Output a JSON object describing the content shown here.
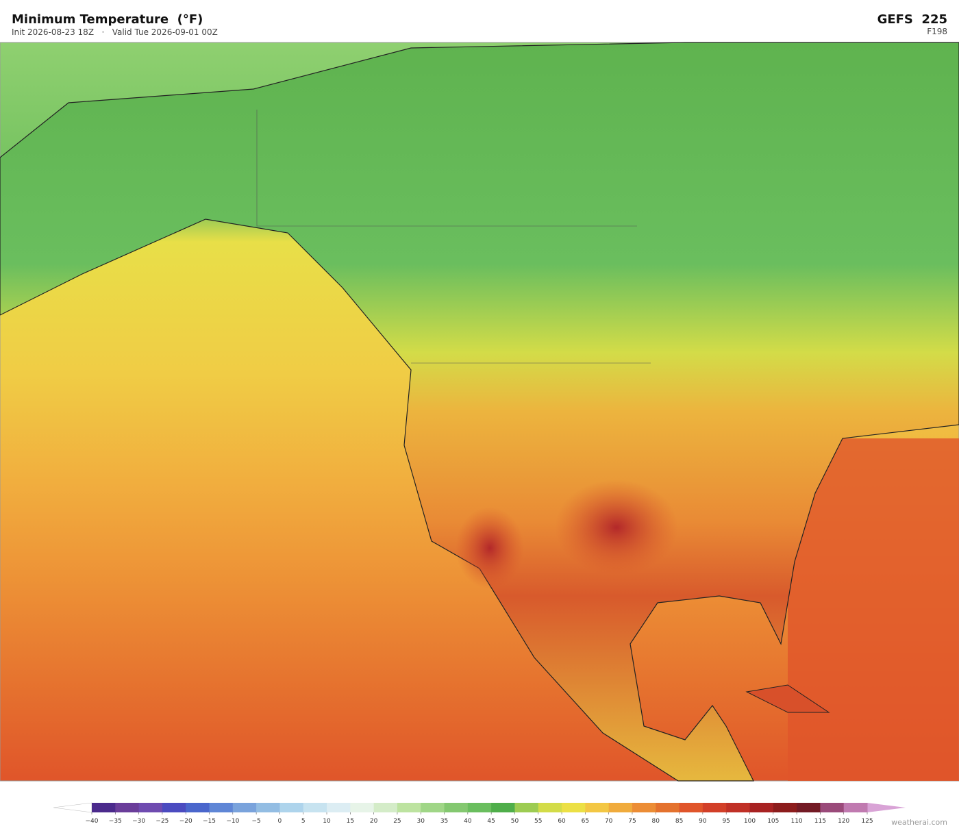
{
  "header": {
    "title": "Minimum Temperature  (°F)",
    "subtitle": "Init 2026-08-23 18Z   ·   Valid Tue 2026-09-01 00Z",
    "model": "GEFS  225",
    "forecast_hour": "F198"
  },
  "colorbar": {
    "ticks": [
      {
        "value": -40,
        "label": "−40"
      },
      {
        "value": -35,
        "label": "−35"
      },
      {
        "value": -30,
        "label": "−30"
      },
      {
        "value": -25,
        "label": "−25"
      },
      {
        "value": -20,
        "label": "−20"
      },
      {
        "value": -15,
        "label": "−15"
      },
      {
        "value": -10,
        "label": "−10"
      },
      {
        "value": -5,
        "label": "−5"
      },
      0,
      5,
      10,
      15,
      20,
      25,
      30,
      35,
      40,
      45,
      50,
      55,
      60,
      65,
      70,
      75,
      80,
      85,
      90,
      95,
      100,
      105,
      110,
      115,
      120,
      125
    ],
    "colors": [
      "#4b2a8c",
      "#6a3d9a",
      "#6f4bb0",
      "#4b4bc0",
      "#4a66cc",
      "#5f86d6",
      "#7aa3dc",
      "#93bde3",
      "#aed4ec",
      "#c7e3f0",
      "#dcedf3",
      "#e7f4e8",
      "#d4ecc8",
      "#bde3a0",
      "#a0d687",
      "#84c870",
      "#6abe5e",
      "#4fae4a",
      "#9dcc52",
      "#d3dc48",
      "#ece045",
      "#f3c744",
      "#f0ab3c",
      "#ec8d35",
      "#e4722e",
      "#e0552a",
      "#d23f28",
      "#c03026",
      "#a82222",
      "#8c1c1c",
      "#731a24",
      "#9a4a7a",
      "#c07ab0"
    ],
    "under_color": "#ffffff",
    "over_color": "#d9a3d6"
  },
  "footer": {
    "credit": "weatherai.com"
  }
}
